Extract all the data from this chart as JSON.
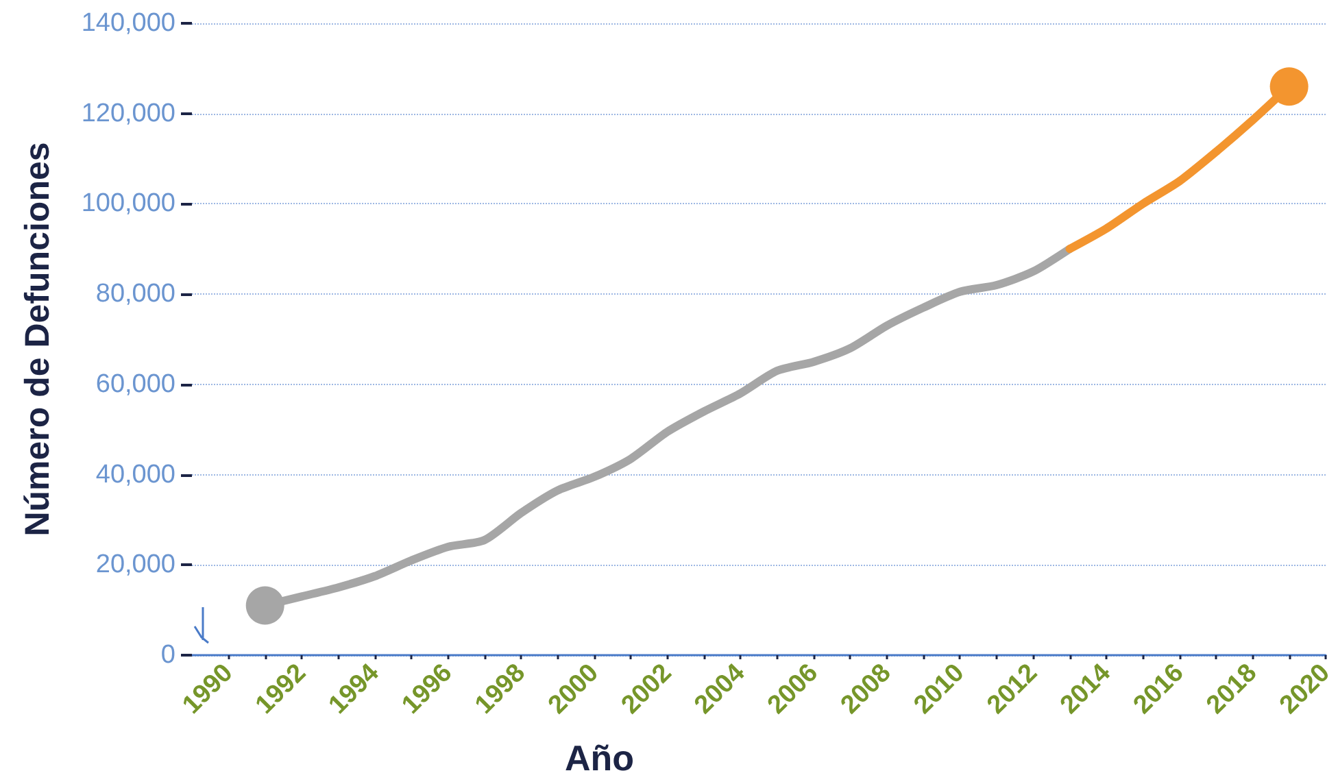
{
  "chart_data": {
    "type": "line",
    "xlabel": "Año",
    "ylabel": "Número de Defunciones",
    "xlim": [
      1989,
      2020
    ],
    "xticks": [
      1990,
      {
        "value": 1991,
        "label": null
      },
      1992,
      {
        "value": 1993,
        "label": null
      },
      1994,
      {
        "value": 1995,
        "label": null
      },
      1996,
      {
        "value": 1997,
        "label": null
      },
      1998,
      {
        "value": 1999,
        "label": null
      },
      2000,
      {
        "value": 2001,
        "label": null
      },
      2002,
      {
        "value": 2003,
        "label": null
      },
      2004,
      {
        "value": 2005,
        "label": null
      },
      2006,
      {
        "value": 2007,
        "label": null
      },
      2008,
      {
        "value": 2009,
        "label": null
      },
      2010,
      {
        "value": 2011,
        "label": null
      },
      2012,
      {
        "value": 2013,
        "label": null
      },
      2014,
      {
        "value": 2015,
        "label": null
      },
      2016,
      {
        "value": 2017,
        "label": null
      },
      2018,
      {
        "value": 2019,
        "label": null
      },
      2020
    ],
    "ylim": [
      0,
      140000
    ],
    "yticks": [
      0,
      {
        "value": 20000,
        "label": "20,000"
      },
      {
        "value": 40000,
        "label": "40,000"
      },
      {
        "value": 60000,
        "label": "60,000"
      },
      {
        "value": 80000,
        "label": "80,000"
      },
      {
        "value": 100000,
        "label": "100,000"
      },
      {
        "value": 120000,
        "label": "120,000"
      },
      {
        "value": 140000,
        "label": "140,000"
      }
    ],
    "grid": "y",
    "line_style": "solid",
    "marker": "none",
    "series": [
      {
        "color": "#a6a6a6",
        "x": [
          1991,
          1992,
          1993,
          1994,
          1995,
          1996,
          1997,
          1998,
          1999,
          2000,
          2001,
          2002,
          2003,
          2004,
          2005,
          2006,
          2007,
          2008,
          2009,
          2010,
          2011,
          2012,
          2013
        ],
        "values": [
          11000,
          13000,
          15000,
          17500,
          21000,
          24000,
          25500,
          31500,
          36500,
          39500,
          43500,
          49500,
          54000,
          58000,
          63000,
          65000,
          68000,
          73000,
          77000,
          80500,
          82000,
          85000,
          90000
        ]
      },
      {
        "color": "#f3952f",
        "x": [
          2013,
          2014,
          2015,
          2016,
          2017,
          2018,
          2019
        ],
        "values": [
          90000,
          94500,
          100000,
          105000,
          111500,
          118500,
          126000
        ]
      },
      {
        "type": "scatter",
        "color": "#a6a6a6",
        "marker": "circle",
        "x": [
          1991
        ],
        "values": [
          11000
        ]
      },
      {
        "type": "scatter",
        "color": "#f3952f",
        "marker": "circle",
        "x": [
          2019
        ],
        "values": [
          126000
        ]
      }
    ]
  }
}
